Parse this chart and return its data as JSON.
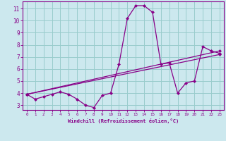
{
  "xlabel": "Windchill (Refroidissement éolien,°C)",
  "bg_color": "#cce8ee",
  "line_color": "#880088",
  "grid_color": "#99cccc",
  "xlim": [
    -0.5,
    23.5
  ],
  "ylim": [
    2.6,
    11.6
  ],
  "yticks": [
    3,
    4,
    5,
    6,
    7,
    8,
    9,
    10,
    11
  ],
  "xticks": [
    0,
    1,
    2,
    3,
    4,
    5,
    6,
    7,
    8,
    9,
    10,
    11,
    12,
    13,
    14,
    15,
    16,
    17,
    18,
    19,
    20,
    21,
    22,
    23
  ],
  "curve1_x": [
    0,
    1,
    2,
    3,
    4,
    5,
    6,
    7,
    8,
    9,
    10,
    11,
    12,
    13,
    14,
    15,
    16,
    17,
    18,
    19,
    20,
    21,
    22,
    23
  ],
  "curve1_y": [
    3.9,
    3.5,
    3.7,
    3.9,
    4.1,
    3.9,
    3.5,
    3.0,
    2.8,
    3.8,
    4.0,
    6.4,
    10.2,
    11.25,
    11.25,
    10.7,
    6.4,
    6.5,
    4.0,
    4.85,
    5.0,
    7.85,
    7.5,
    7.3
  ],
  "curve2_x": [
    0,
    23
  ],
  "curve2_y": [
    3.9,
    7.5
  ],
  "curve3_x": [
    0,
    23
  ],
  "curve3_y": [
    3.9,
    7.2
  ]
}
